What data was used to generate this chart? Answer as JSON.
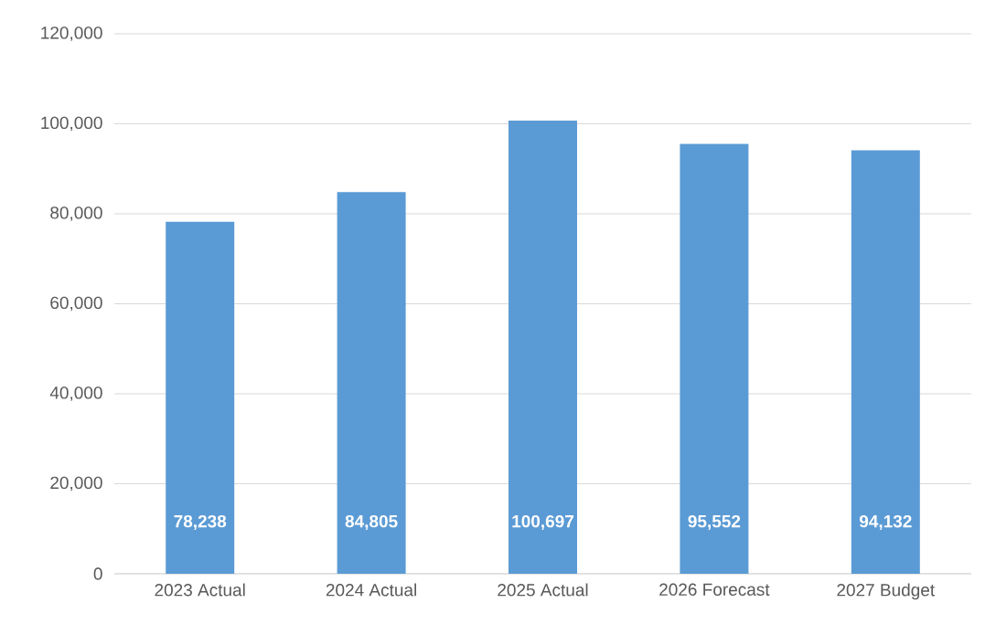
{
  "chart_data": {
    "type": "bar",
    "categories": [
      "2023 Actual",
      "2024 Actual",
      "2025 Actual",
      "2026 Forecast",
      "2027 Budget"
    ],
    "values": [
      78238,
      84805,
      100697,
      95552,
      94132
    ],
    "value_labels": [
      "78,238",
      "84,805",
      "100,697",
      "95,552",
      "94,132"
    ],
    "color": "#5b9bd5",
    "ylim": [
      0,
      120000
    ],
    "yticks": [
      0,
      {
        "value": 20000,
        "label": "20,000"
      },
      {
        "value": 40000,
        "label": "40,000"
      },
      {
        "value": 60000,
        "label": "60,000"
      },
      {
        "value": 80000,
        "label": "80,000"
      },
      {
        "value": 100000,
        "label": "100,000"
      },
      {
        "value": 120000,
        "label": "120,000"
      }
    ],
    "grid": "y"
  }
}
